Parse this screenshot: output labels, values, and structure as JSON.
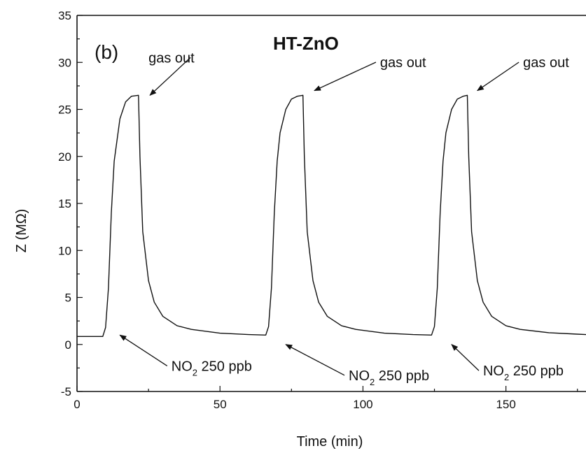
{
  "chart_data": {
    "type": "line",
    "panel_label": "(b)",
    "title": "HT-ZnO",
    "xlabel": "Time (min)",
    "ylabel": "Z (MΩ)",
    "xlim": [
      0,
      178
    ],
    "ylim": [
      -5,
      35
    ],
    "xticks": [
      0,
      50,
      100,
      150
    ],
    "yticks": [
      -5,
      0,
      5,
      10,
      15,
      20,
      25,
      30,
      35
    ],
    "grid": false,
    "series": [
      {
        "name": "",
        "x": [
          0,
          9,
          10,
          11,
          12,
          13,
          15,
          17,
          19,
          21.5,
          22,
          23,
          25,
          27,
          30,
          35,
          40,
          50,
          60,
          66,
          67,
          68,
          69,
          70,
          71,
          73,
          75,
          77,
          79,
          79.5,
          80.5,
          82.5,
          84.5,
          87.5,
          92.5,
          97.5,
          107.5,
          117.5,
          124,
          125,
          126,
          127,
          128,
          129,
          131,
          133,
          135,
          136.5,
          137,
          138,
          140,
          142,
          145,
          150,
          155,
          165,
          175,
          178
        ],
        "y": [
          0.85,
          0.85,
          1.8,
          6,
          14,
          19.5,
          24,
          25.8,
          26.4,
          26.5,
          20,
          12,
          6.8,
          4.5,
          3,
          2,
          1.6,
          1.2,
          1.05,
          1.0,
          1.9,
          6,
          14,
          19.5,
          22.5,
          25,
          26.1,
          26.4,
          26.5,
          20,
          12,
          6.8,
          4.5,
          3,
          2,
          1.6,
          1.2,
          1.05,
          1.0,
          1.9,
          6,
          14,
          19.5,
          22.5,
          25,
          26.1,
          26.4,
          26.5,
          20,
          12,
          6.8,
          4.5,
          3,
          2,
          1.6,
          1.25,
          1.1,
          1.05
        ]
      }
    ],
    "annotations": [
      {
        "text": "gas out",
        "sub": "",
        "rest": "",
        "x": 25,
        "y": 30,
        "arrow_to": [
          25.5,
          26.5
        ]
      },
      {
        "text": "gas out",
        "sub": "",
        "rest": "",
        "x": 106,
        "y": 29.5,
        "arrow_to": [
          83,
          27
        ]
      },
      {
        "text": "gas out",
        "sub": "",
        "rest": "",
        "x": 156,
        "y": 29.5,
        "arrow_to": [
          140,
          27
        ]
      },
      {
        "text": "NO",
        "sub": "2",
        "rest": " 250 ppb",
        "x": 33,
        "y": -2.8,
        "arrow_to": [
          15,
          1
        ]
      },
      {
        "text": "NO",
        "sub": "2",
        "rest": " 250 ppb",
        "x": 95,
        "y": -3.8,
        "arrow_to": [
          73,
          0
        ]
      },
      {
        "text": "NO",
        "sub": "2",
        "rest": " 250 ppb",
        "x": 142,
        "y": -3.3,
        "arrow_to": [
          131,
          0
        ]
      }
    ]
  }
}
